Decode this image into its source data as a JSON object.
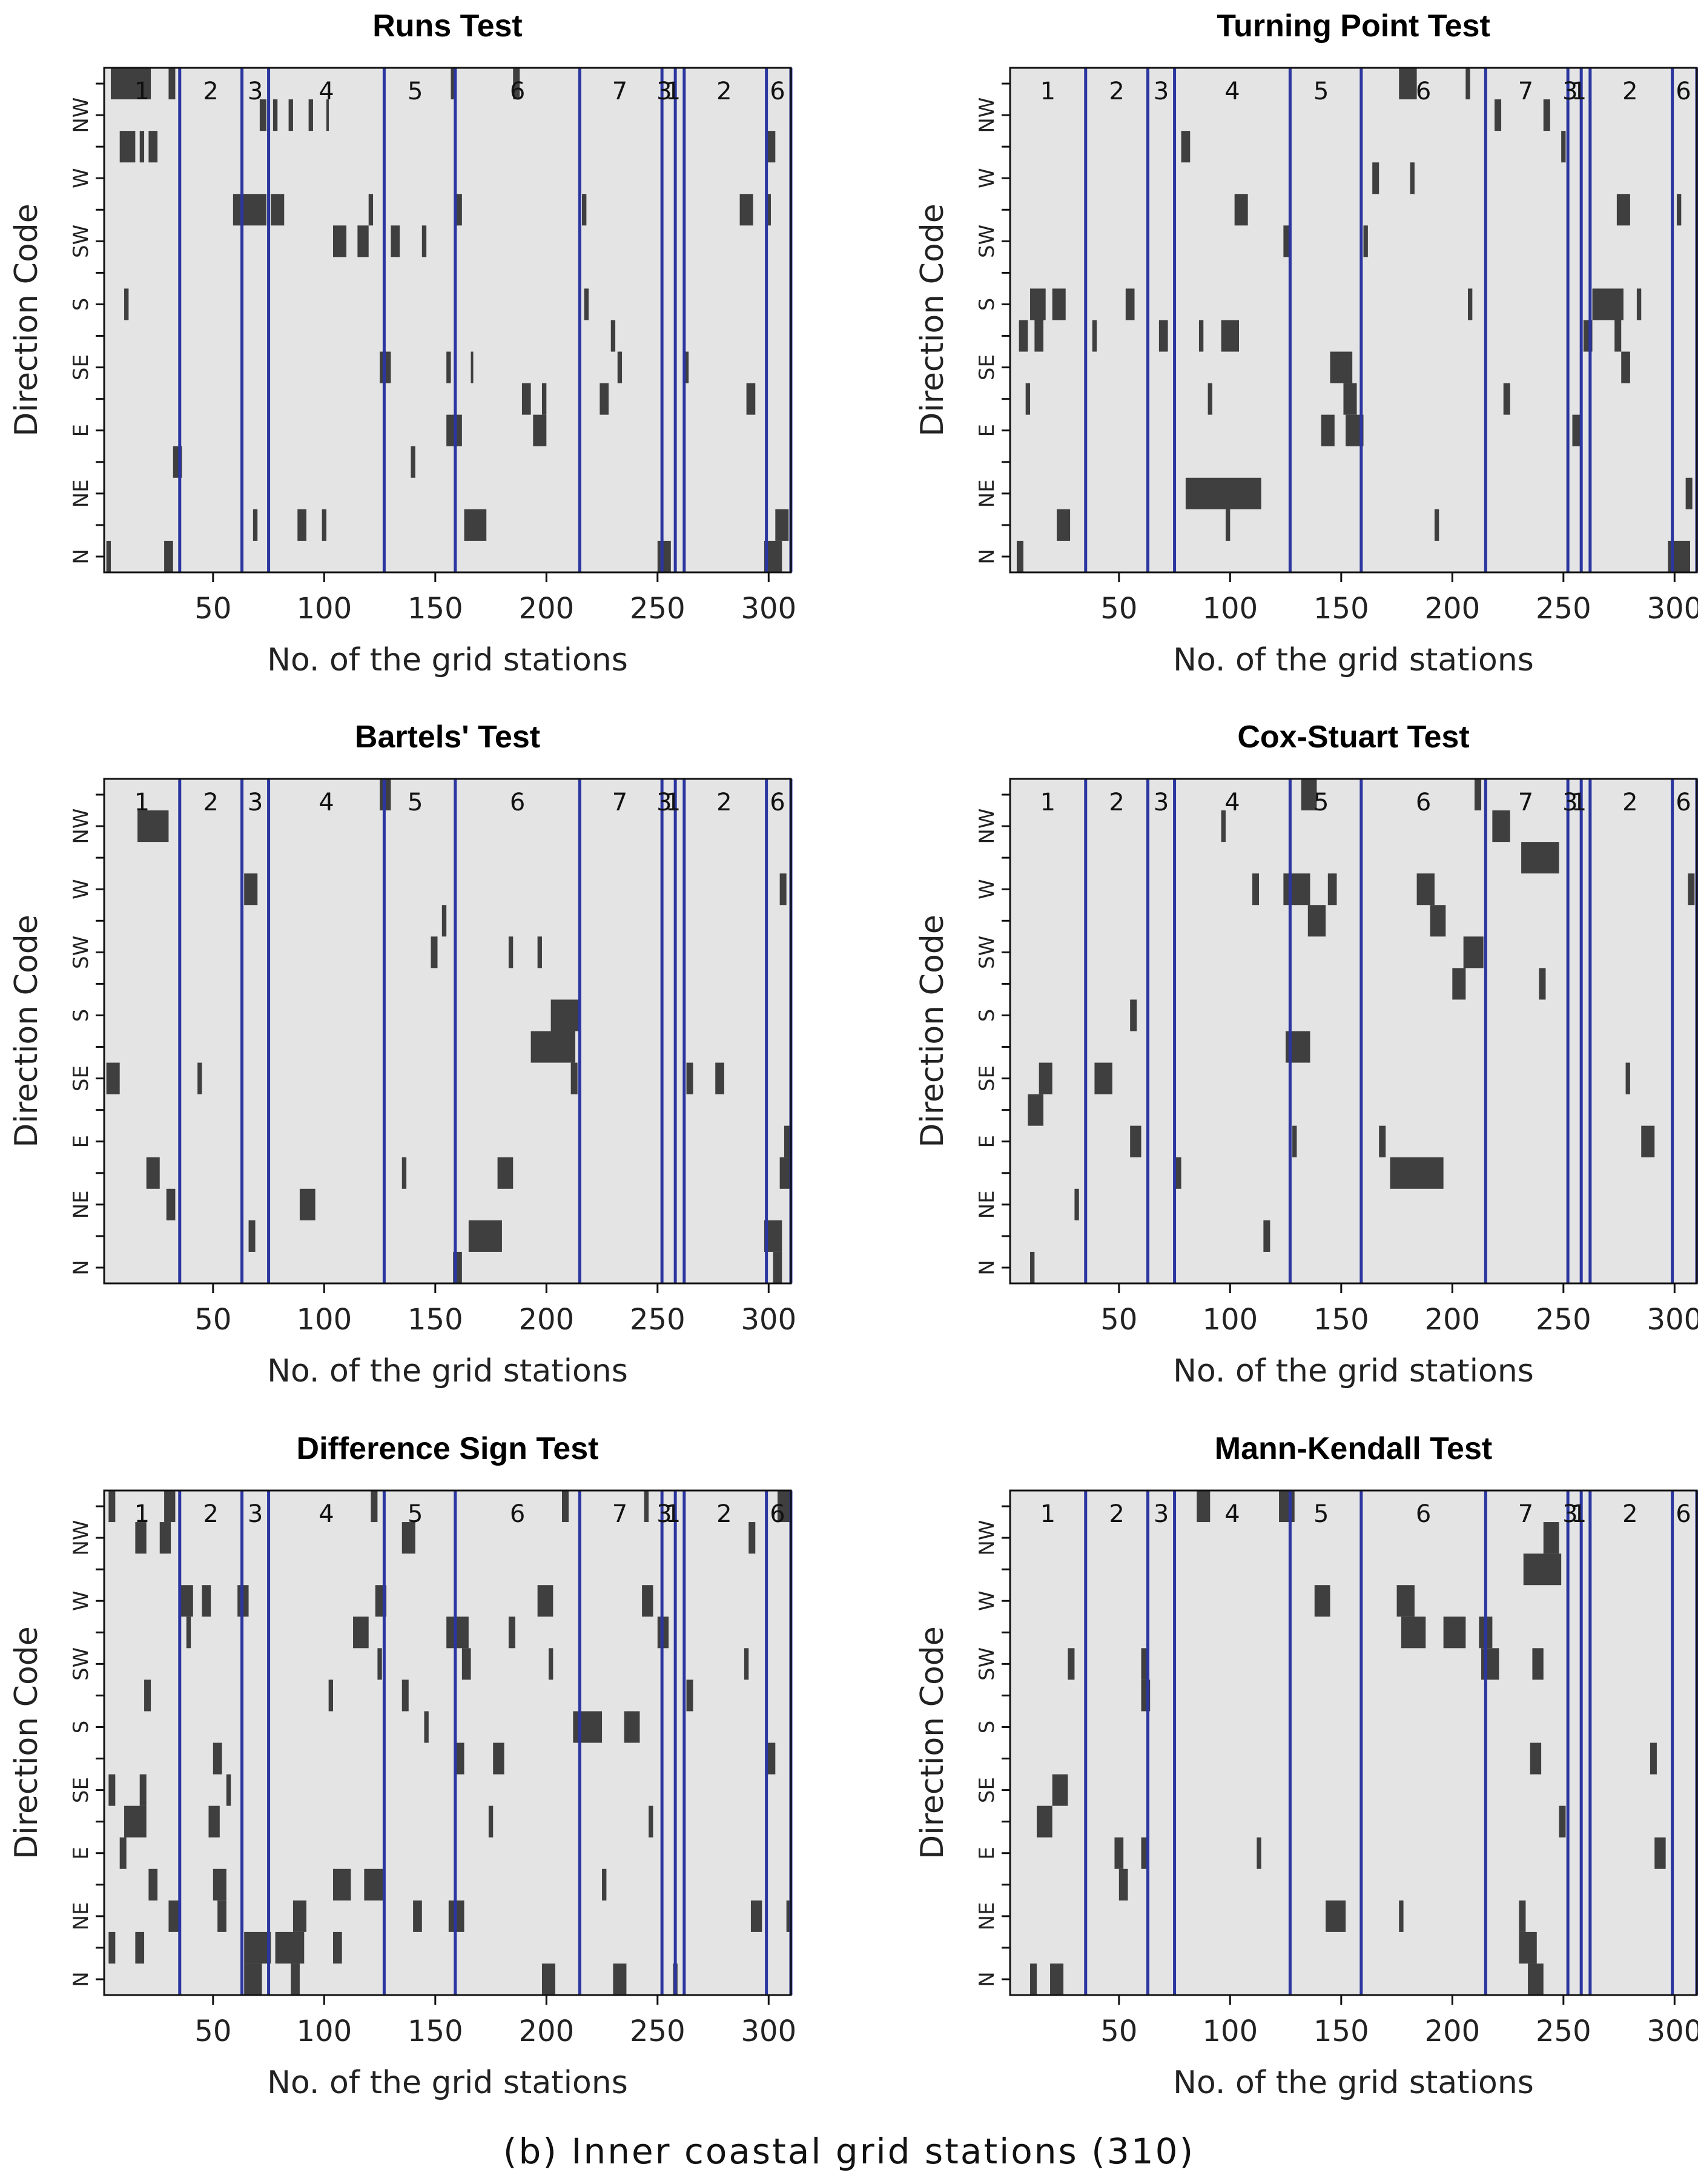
{
  "caption": "(b) Inner coastal grid stations (310)",
  "chart_data": {
    "type": "heatmap",
    "n_stations": 310,
    "xlim": [
      1,
      310
    ],
    "xticks": [
      50,
      100,
      150,
      200,
      250,
      300
    ],
    "xlabel": "No. of the grid stations",
    "ylabel": "Direction Code",
    "yticks": [
      "N",
      "NE",
      "E",
      "SE",
      "S",
      "SW",
      "W",
      "NW"
    ],
    "n_rows": 16,
    "group_boundaries": [
      35,
      63,
      75,
      127,
      159,
      215,
      252,
      258,
      262,
      299,
      310
    ],
    "group_labels": [
      {
        "label": "1",
        "x": 18
      },
      {
        "label": "2",
        "x": 49
      },
      {
        "label": "3",
        "x": 69
      },
      {
        "label": "4",
        "x": 101
      },
      {
        "label": "5",
        "x": 141
      },
      {
        "label": "6",
        "x": 187
      },
      {
        "label": "7",
        "x": 233
      },
      {
        "label": "3",
        "x": 253
      },
      {
        "label": "1",
        "x": 257
      },
      {
        "label": "2",
        "x": 280
      },
      {
        "label": "6",
        "x": 304
      }
    ],
    "colors": {
      "background": "#e4e4e4",
      "mark": "#3f3f3f",
      "boundary": "#2b36a0"
    },
    "panels": [
      {
        "title": "Runs Test",
        "marks": [
          [
            15,
            4,
            22
          ],
          [
            15,
            30,
            33
          ],
          [
            15,
            157,
            159
          ],
          [
            15,
            185,
            188
          ],
          [
            14,
            71,
            74
          ],
          [
            14,
            77,
            79
          ],
          [
            14,
            84,
            86
          ],
          [
            14,
            93,
            95
          ],
          [
            14,
            101,
            102
          ],
          [
            13,
            8,
            15
          ],
          [
            13,
            17,
            19
          ],
          [
            13,
            21,
            25
          ],
          [
            13,
            299,
            303
          ],
          [
            11,
            59,
            74
          ],
          [
            11,
            76,
            82
          ],
          [
            11,
            120,
            122
          ],
          [
            11,
            159,
            162
          ],
          [
            11,
            216,
            218
          ],
          [
            11,
            287,
            293
          ],
          [
            11,
            299,
            301
          ],
          [
            10,
            104,
            110
          ],
          [
            10,
            115,
            120
          ],
          [
            10,
            130,
            134
          ],
          [
            10,
            144,
            146
          ],
          [
            8,
            10,
            12
          ],
          [
            8,
            217,
            219
          ],
          [
            7,
            229,
            231
          ],
          [
            6,
            125,
            130
          ],
          [
            6,
            155,
            157
          ],
          [
            6,
            166,
            167
          ],
          [
            6,
            232,
            234
          ],
          [
            6,
            262,
            264
          ],
          [
            5,
            189,
            193
          ],
          [
            5,
            198,
            200
          ],
          [
            5,
            224,
            228
          ],
          [
            5,
            290,
            294
          ],
          [
            4,
            155,
            162
          ],
          [
            4,
            194,
            200
          ],
          [
            3,
            32,
            36
          ],
          [
            3,
            139,
            141
          ],
          [
            1,
            68,
            70
          ],
          [
            1,
            88,
            92
          ],
          [
            1,
            99,
            101
          ],
          [
            1,
            163,
            173
          ],
          [
            1,
            303,
            309
          ],
          [
            0,
            2,
            4
          ],
          [
            0,
            28,
            32
          ],
          [
            0,
            250,
            256
          ],
          [
            0,
            298,
            306
          ]
        ]
      },
      {
        "title": "Turning Point Test",
        "marks": [
          [
            15,
            176,
            184
          ],
          [
            15,
            206,
            208
          ],
          [
            14,
            219,
            222
          ],
          [
            14,
            241,
            244
          ],
          [
            13,
            78,
            82
          ],
          [
            13,
            249,
            251
          ],
          [
            12,
            164,
            167
          ],
          [
            12,
            181,
            183
          ],
          [
            11,
            102,
            108
          ],
          [
            11,
            274,
            280
          ],
          [
            11,
            301,
            303
          ],
          [
            10,
            124,
            127
          ],
          [
            10,
            160,
            162
          ],
          [
            8,
            10,
            17
          ],
          [
            8,
            20,
            26
          ],
          [
            8,
            53,
            57
          ],
          [
            8,
            207,
            209
          ],
          [
            8,
            263,
            277
          ],
          [
            8,
            283,
            285
          ],
          [
            7,
            5,
            9
          ],
          [
            7,
            12,
            16
          ],
          [
            7,
            38,
            40
          ],
          [
            7,
            68,
            72
          ],
          [
            7,
            86,
            88
          ],
          [
            7,
            96,
            104
          ],
          [
            7,
            259,
            263
          ],
          [
            7,
            273,
            276
          ],
          [
            6,
            145,
            155
          ],
          [
            6,
            276,
            280
          ],
          [
            5,
            8,
            10
          ],
          [
            5,
            90,
            92
          ],
          [
            5,
            151,
            157
          ],
          [
            5,
            223,
            226
          ],
          [
            4,
            141,
            147
          ],
          [
            4,
            152,
            160
          ],
          [
            4,
            254,
            258
          ],
          [
            2,
            80,
            114
          ],
          [
            2,
            305,
            308
          ],
          [
            1,
            22,
            28
          ],
          [
            1,
            98,
            100
          ],
          [
            1,
            192,
            194
          ],
          [
            0,
            4,
            7
          ],
          [
            0,
            297,
            307
          ]
        ]
      },
      {
        "title": "Bartels' Test",
        "marks": [
          [
            15,
            125,
            130
          ],
          [
            14,
            16,
            30
          ],
          [
            12,
            64,
            70
          ],
          [
            12,
            305,
            308
          ],
          [
            11,
            153,
            155
          ],
          [
            10,
            148,
            151
          ],
          [
            10,
            183,
            185
          ],
          [
            10,
            196,
            198
          ],
          [
            8,
            202,
            215
          ],
          [
            7,
            193,
            213
          ],
          [
            6,
            2,
            8
          ],
          [
            6,
            43,
            45
          ],
          [
            6,
            211,
            214
          ],
          [
            6,
            263,
            266
          ],
          [
            6,
            276,
            280
          ],
          [
            4,
            307,
            310
          ],
          [
            3,
            20,
            26
          ],
          [
            3,
            135,
            137
          ],
          [
            3,
            178,
            185
          ],
          [
            3,
            305,
            310
          ],
          [
            2,
            29,
            33
          ],
          [
            2,
            89,
            96
          ],
          [
            1,
            66,
            69
          ],
          [
            1,
            165,
            180
          ],
          [
            1,
            298,
            306
          ],
          [
            0,
            158,
            162
          ],
          [
            0,
            302,
            306
          ]
        ]
      },
      {
        "title": "Cox-Stuart Test",
        "marks": [
          [
            15,
            132,
            139
          ],
          [
            15,
            210,
            213
          ],
          [
            14,
            96,
            98
          ],
          [
            14,
            218,
            226
          ],
          [
            13,
            231,
            248
          ],
          [
            12,
            110,
            113
          ],
          [
            12,
            124,
            136
          ],
          [
            12,
            144,
            148
          ],
          [
            12,
            184,
            192
          ],
          [
            12,
            306,
            309
          ],
          [
            11,
            135,
            143
          ],
          [
            11,
            190,
            197
          ],
          [
            10,
            205,
            214
          ],
          [
            9,
            200,
            206
          ],
          [
            9,
            239,
            242
          ],
          [
            8,
            55,
            58
          ],
          [
            7,
            125,
            136
          ],
          [
            6,
            14,
            20
          ],
          [
            6,
            39,
            47
          ],
          [
            6,
            278,
            280
          ],
          [
            5,
            9,
            16
          ],
          [
            4,
            55,
            60
          ],
          [
            4,
            128,
            130
          ],
          [
            4,
            167,
            170
          ],
          [
            4,
            285,
            291
          ],
          [
            3,
            75,
            78
          ],
          [
            3,
            172,
            196
          ],
          [
            2,
            30,
            32
          ],
          [
            1,
            115,
            118
          ],
          [
            0,
            10,
            12
          ]
        ]
      },
      {
        "title": "Difference Sign Test",
        "marks": [
          [
            15,
            3,
            6
          ],
          [
            15,
            28,
            33
          ],
          [
            15,
            121,
            124
          ],
          [
            15,
            207,
            210
          ],
          [
            15,
            244,
            246
          ],
          [
            15,
            304,
            310
          ],
          [
            14,
            15,
            20
          ],
          [
            14,
            26,
            31
          ],
          [
            14,
            135,
            141
          ],
          [
            14,
            291,
            294
          ],
          [
            12,
            35,
            41
          ],
          [
            12,
            45,
            49
          ],
          [
            12,
            61,
            66
          ],
          [
            12,
            123,
            128
          ],
          [
            12,
            196,
            203
          ],
          [
            12,
            243,
            248
          ],
          [
            11,
            38,
            40
          ],
          [
            11,
            113,
            120
          ],
          [
            11,
            155,
            165
          ],
          [
            11,
            183,
            186
          ],
          [
            11,
            250,
            255
          ],
          [
            10,
            124,
            126
          ],
          [
            10,
            162,
            166
          ],
          [
            10,
            201,
            203
          ],
          [
            10,
            289,
            291
          ],
          [
            9,
            19,
            22
          ],
          [
            9,
            102,
            104
          ],
          [
            9,
            135,
            138
          ],
          [
            9,
            263,
            266
          ],
          [
            8,
            145,
            147
          ],
          [
            8,
            212,
            225
          ],
          [
            8,
            235,
            242
          ],
          [
            7,
            50,
            54
          ],
          [
            7,
            159,
            163
          ],
          [
            7,
            176,
            181
          ],
          [
            7,
            299,
            303
          ],
          [
            6,
            3,
            6
          ],
          [
            6,
            17,
            20
          ],
          [
            6,
            56,
            58
          ],
          [
            5,
            10,
            20
          ],
          [
            5,
            48,
            53
          ],
          [
            5,
            174,
            176
          ],
          [
            5,
            246,
            248
          ],
          [
            4,
            8,
            11
          ],
          [
            3,
            21,
            25
          ],
          [
            3,
            50,
            56
          ],
          [
            3,
            104,
            112
          ],
          [
            3,
            118,
            127
          ],
          [
            3,
            225,
            227
          ],
          [
            2,
            30,
            35
          ],
          [
            2,
            52,
            56
          ],
          [
            2,
            86,
            92
          ],
          [
            2,
            140,
            144
          ],
          [
            2,
            156,
            163
          ],
          [
            2,
            292,
            297
          ],
          [
            2,
            308,
            310
          ],
          [
            1,
            3,
            6
          ],
          [
            1,
            15,
            19
          ],
          [
            1,
            64,
            76
          ],
          [
            1,
            78,
            91
          ],
          [
            1,
            104,
            108
          ],
          [
            0,
            64,
            72
          ],
          [
            0,
            85,
            89
          ],
          [
            0,
            198,
            204
          ],
          [
            0,
            230,
            236
          ],
          [
            0,
            257,
            259
          ]
        ]
      },
      {
        "title": "Mann-Kendall Test",
        "marks": [
          [
            15,
            85,
            91
          ],
          [
            15,
            122,
            129
          ],
          [
            14,
            241,
            248
          ],
          [
            13,
            232,
            249
          ],
          [
            12,
            138,
            145
          ],
          [
            12,
            175,
            183
          ],
          [
            11,
            177,
            188
          ],
          [
            11,
            196,
            206
          ],
          [
            11,
            212,
            218
          ],
          [
            10,
            27,
            30
          ],
          [
            10,
            60,
            63
          ],
          [
            10,
            213,
            221
          ],
          [
            10,
            236,
            241
          ],
          [
            9,
            60,
            64
          ],
          [
            7,
            235,
            240
          ],
          [
            7,
            289,
            292
          ],
          [
            6,
            20,
            27
          ],
          [
            5,
            13,
            20
          ],
          [
            5,
            248,
            251
          ],
          [
            4,
            48,
            52
          ],
          [
            4,
            60,
            63
          ],
          [
            4,
            112,
            114
          ],
          [
            4,
            291,
            296
          ],
          [
            3,
            50,
            54
          ],
          [
            2,
            143,
            152
          ],
          [
            2,
            176,
            178
          ],
          [
            2,
            230,
            233
          ],
          [
            1,
            230,
            238
          ],
          [
            0,
            10,
            13
          ],
          [
            0,
            19,
            25
          ],
          [
            0,
            234,
            241
          ]
        ]
      }
    ]
  }
}
